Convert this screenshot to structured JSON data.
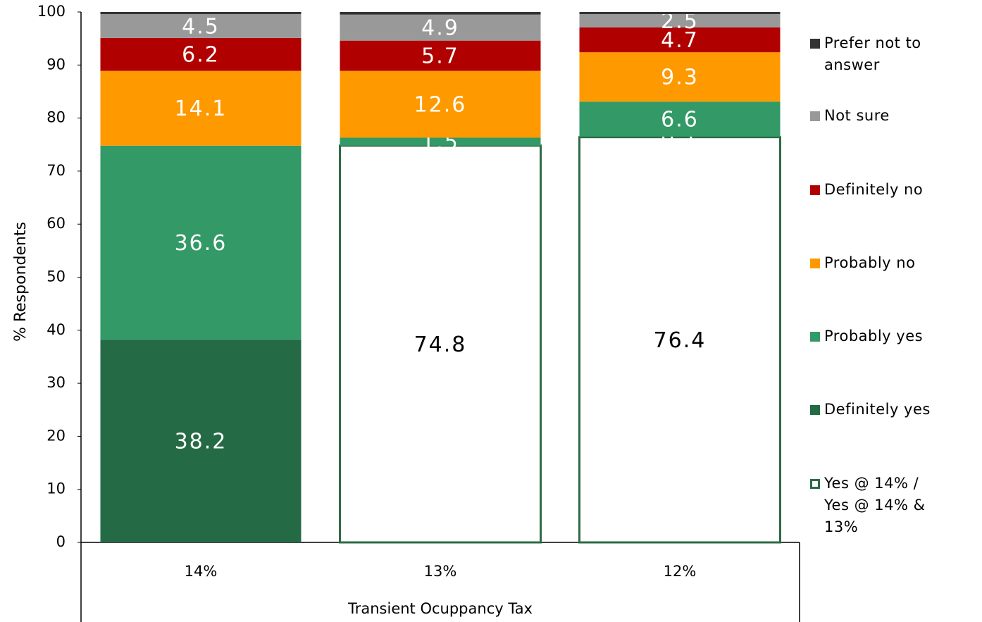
{
  "chart_data": {
    "type": "stacked_bar",
    "y_label": "% Respondents",
    "x_label": "Transient Ocuppancy Tax",
    "categories": [
      "14%",
      "13%",
      "12%"
    ],
    "ylim": [
      0,
      100
    ],
    "yticks": [
      0,
      10,
      20,
      30,
      40,
      50,
      60,
      70,
      80,
      90,
      100
    ],
    "legend": "right",
    "series": [
      {
        "name": "Yes @ 14% / Yes @ 14% & 13%",
        "color": "#ffffff",
        "edge": "#2e6b45",
        "values": [
          null,
          74.8,
          76.4
        ]
      },
      {
        "name": "Definitely yes",
        "color": "#246b45",
        "values": [
          38.2,
          null,
          0.1
        ]
      },
      {
        "name": "Probably yes",
        "color": "#339966",
        "values": [
          36.6,
          1.5,
          6.6
        ]
      },
      {
        "name": "Probably no",
        "color": "#ff9900",
        "values": [
          14.1,
          12.6,
          9.3
        ]
      },
      {
        "name": "Definitely no",
        "color": "#b00000",
        "values": [
          6.2,
          5.7,
          4.7
        ]
      },
      {
        "name": "Not sure",
        "color": "#999999",
        "values": [
          4.5,
          4.9,
          2.5
        ]
      },
      {
        "name": "Prefer not to answer",
        "color": "#333333",
        "values": [
          0.4,
          0.5,
          0.4
        ],
        "labels": false
      }
    ]
  }
}
